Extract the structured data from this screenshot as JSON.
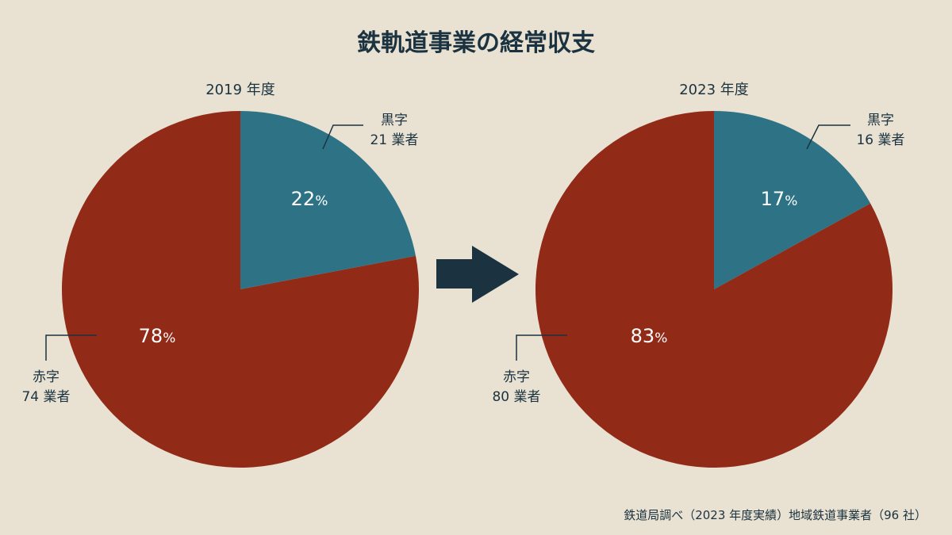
{
  "title": "鉄軌道事業の経常収支",
  "source": "鉄道局調べ（2023 年度実績）地域鉄道事業者（96 社）",
  "colors": {
    "background": "#e9e2d2",
    "profit": "#2e7385",
    "deficit": "#922a18",
    "text": "#1b3340",
    "arrow": "#1b3340"
  },
  "arrow_icon": "right-arrow-icon",
  "chart_data": [
    {
      "type": "pie",
      "title": "2019 年度",
      "slices": [
        {
          "label": "黒字",
          "value": 22,
          "value_text": "22",
          "count_text": "21 業者",
          "color": "#2e7385"
        },
        {
          "label": "赤字",
          "value": 78,
          "value_text": "78",
          "count_text": "74 業者",
          "color": "#922a18"
        }
      ],
      "unit": "%"
    },
    {
      "type": "pie",
      "title": "2023 年度",
      "slices": [
        {
          "label": "黒字",
          "value": 17,
          "value_text": "17",
          "count_text": "16 業者",
          "color": "#2e7385"
        },
        {
          "label": "赤字",
          "value": 83,
          "value_text": "83",
          "count_text": "80 業者",
          "color": "#922a18"
        }
      ],
      "unit": "%"
    }
  ]
}
